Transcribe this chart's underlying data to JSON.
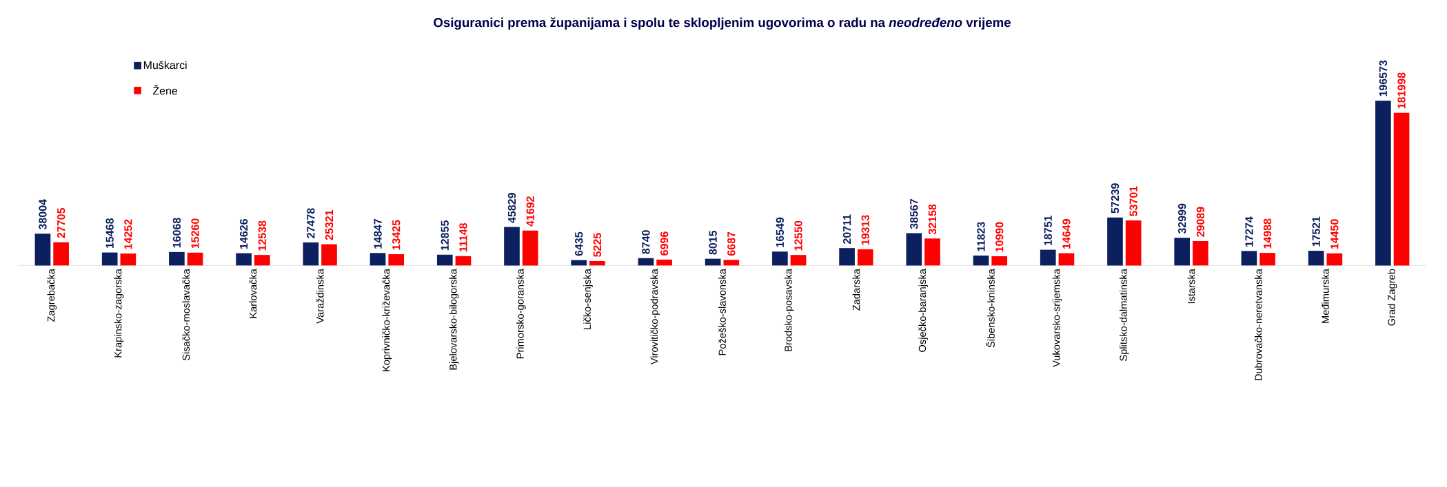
{
  "chart_data": {
    "type": "bar",
    "title": "Osiguranici prema županijama i spolu te sklopljenim ugovorima o radu na *neodređeno* vrijeme",
    "categories": [
      "Zagrebačka",
      "Krapinsko-zagorska",
      "Sisačko-moslavačka",
      "Karlovačka",
      "Varaždinska",
      "Koprivničko-križevačka",
      "Bjelovarsko-bilogorska",
      "Primorsko-goranska",
      "Ličko-senjska",
      "Virovitičko-podravska",
      "Požeško-slavonska",
      "Brodsko-posavska",
      "Zadarska",
      "Osječko-baranjska",
      "Šibensko-kninska",
      "Vukovarsko-srijemska",
      "Splitsko-dalmatinska",
      "Istarska",
      "Dubrovačko-neretvanska",
      "Međimurska",
      "Grad Zagreb"
    ],
    "series": [
      {
        "name": "Muškarci",
        "color": "#0c1f5e",
        "values": [
          38004,
          15468,
          16068,
          14626,
          27478,
          14847,
          12855,
          45829,
          6435,
          8740,
          8015,
          16549,
          20711,
          38567,
          11823,
          18751,
          57239,
          32999,
          17274,
          17521,
          196573
        ]
      },
      {
        "name": "Žene",
        "color": "#ff0000",
        "values": [
          27705,
          14252,
          15260,
          12538,
          25321,
          13425,
          11148,
          41692,
          5225,
          6996,
          6687,
          12550,
          19313,
          32158,
          10990,
          14649,
          53701,
          29089,
          14988,
          14450,
          181998
        ]
      }
    ],
    "data_labels": true,
    "legend": "top left"
  }
}
